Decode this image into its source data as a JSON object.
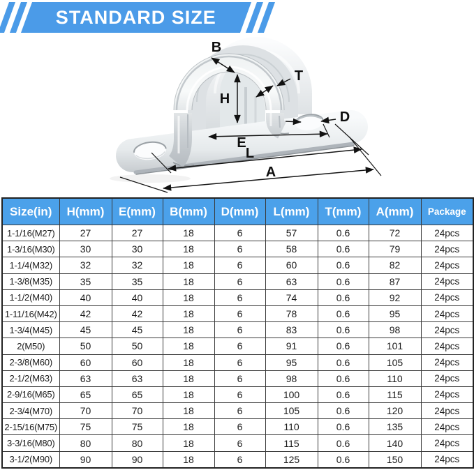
{
  "banner": {
    "title": "STANDARD SIZE",
    "accent_blue": "#4b9be8"
  },
  "diagram": {
    "labels": {
      "B": "B",
      "T": "T",
      "H": "H",
      "D": "D",
      "E": "E",
      "L": "L",
      "A": "A"
    }
  },
  "table": {
    "header_blue": "#4ba1ea",
    "headers": [
      "Size(in)",
      "H(mm)",
      "E(mm)",
      "B(mm)",
      "D(mm)",
      "L(mm)",
      "T(mm)",
      "A(mm)",
      "Package"
    ],
    "rows": [
      [
        "1-1/16(M27)",
        "27",
        "27",
        "18",
        "6",
        "57",
        "0.6",
        "72",
        "24pcs"
      ],
      [
        "1-3/16(M30)",
        "30",
        "30",
        "18",
        "6",
        "58",
        "0.6",
        "79",
        "24pcs"
      ],
      [
        "1-1/4(M32)",
        "32",
        "32",
        "18",
        "6",
        "60",
        "0.6",
        "82",
        "24pcs"
      ],
      [
        "1-3/8(M35)",
        "35",
        "35",
        "18",
        "6",
        "63",
        "0.6",
        "87",
        "24pcs"
      ],
      [
        "1-1/2(M40)",
        "40",
        "40",
        "18",
        "6",
        "74",
        "0.6",
        "92",
        "24pcs"
      ],
      [
        "1-11/16(M42)",
        "42",
        "42",
        "18",
        "6",
        "78",
        "0.6",
        "95",
        "24pcs"
      ],
      [
        "1-3/4(M45)",
        "45",
        "45",
        "18",
        "6",
        "83",
        "0.6",
        "98",
        "24pcs"
      ],
      [
        "2(M50)",
        "50",
        "50",
        "18",
        "6",
        "91",
        "0.6",
        "101",
        "24pcs"
      ],
      [
        "2-3/8(M60)",
        "60",
        "60",
        "18",
        "6",
        "95",
        "0.6",
        "105",
        "24pcs"
      ],
      [
        "2-1/2(M63)",
        "63",
        "63",
        "18",
        "6",
        "98",
        "0.6",
        "110",
        "24pcs"
      ],
      [
        "2-9/16(M65)",
        "65",
        "65",
        "18",
        "6",
        "100",
        "0.6",
        "115",
        "24pcs"
      ],
      [
        "2-3/4(M70)",
        "70",
        "70",
        "18",
        "6",
        "105",
        "0.6",
        "120",
        "24pcs"
      ],
      [
        "2-15/16(M75)",
        "75",
        "75",
        "18",
        "6",
        "110",
        "0.6",
        "135",
        "24pcs"
      ],
      [
        "3-3/16(M80)",
        "80",
        "80",
        "18",
        "6",
        "115",
        "0.6",
        "140",
        "24pcs"
      ],
      [
        "3-1/2(M90)",
        "90",
        "90",
        "18",
        "6",
        "125",
        "0.6",
        "150",
        "24pcs"
      ]
    ]
  }
}
